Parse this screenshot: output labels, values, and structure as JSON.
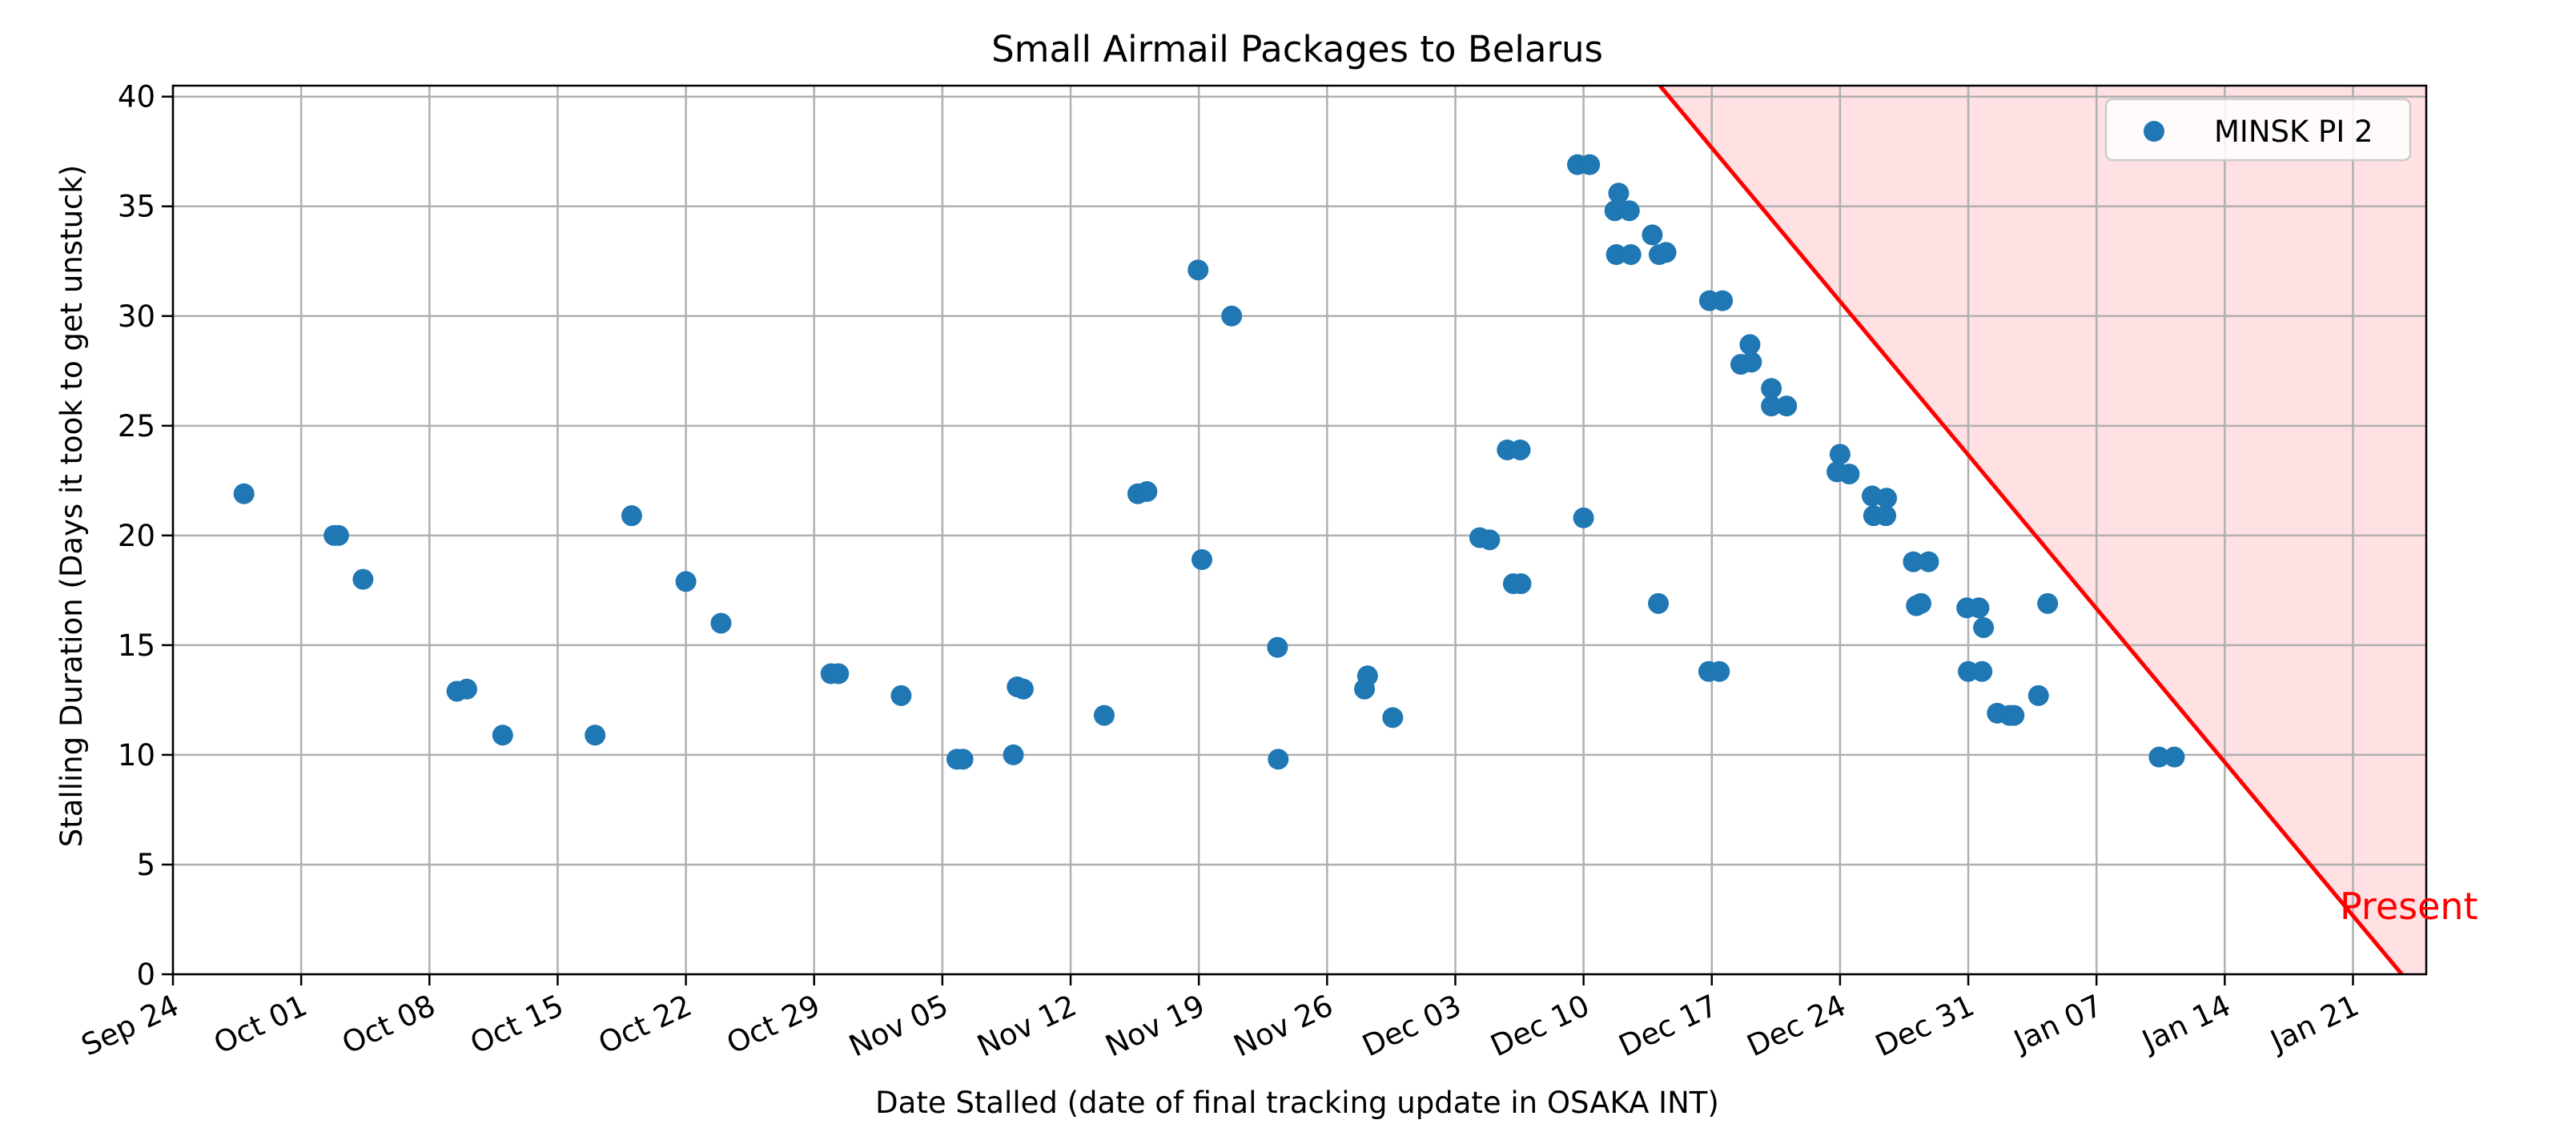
{
  "chart_data": {
    "type": "scatter",
    "title": "Small Airmail Packages to Belarus",
    "xlabel": "Date Stalled (date of final tracking update in OSAKA INT)",
    "ylabel": "Stalling Duration (Days it took to get unstuck)",
    "x_axis_type": "date",
    "xlim": [
      "2023-09-24",
      "2024-01-25"
    ],
    "ylim": [
      0,
      40.5
    ],
    "x_ticks": [
      "2023-09-24",
      "2023-10-01",
      "2023-10-08",
      "2023-10-15",
      "2023-10-22",
      "2023-10-29",
      "2023-11-05",
      "2023-11-12",
      "2023-11-19",
      "2023-11-26",
      "2023-12-03",
      "2023-12-10",
      "2023-12-17",
      "2023-12-24",
      "2023-12-31",
      "2024-01-07",
      "2024-01-14",
      "2024-01-21"
    ],
    "x_tick_labels": [
      "Sep 24",
      "Oct 01",
      "Oct 08",
      "Oct 15",
      "Oct 22",
      "Oct 29",
      "Nov 05",
      "Nov 12",
      "Nov 19",
      "Nov 26",
      "Dec 03",
      "Dec 10",
      "Dec 17",
      "Dec 24",
      "Dec 31",
      "Jan 07",
      "Jan 14",
      "Jan 21"
    ],
    "y_ticks": [
      0,
      5,
      10,
      15,
      20,
      25,
      30,
      35,
      40
    ],
    "y_tick_labels": [
      "0",
      "5",
      "10",
      "15",
      "20",
      "25",
      "30",
      "35",
      "40"
    ],
    "grid": true,
    "legend_position": "top-right",
    "series": [
      {
        "name": "MINSK PI 2",
        "color": "#1f77b4",
        "points": [
          {
            "x": "2023-09-27 21:00",
            "y": 21.9
          },
          {
            "x": "2023-10-02 19:00",
            "y": 20.0
          },
          {
            "x": "2023-10-03 01:00",
            "y": 20.0
          },
          {
            "x": "2023-10-04 09:00",
            "y": 18.0
          },
          {
            "x": "2023-10-09 12:00",
            "y": 12.9
          },
          {
            "x": "2023-10-10 01:00",
            "y": 13.0
          },
          {
            "x": "2023-10-12 00:00",
            "y": 10.9
          },
          {
            "x": "2023-10-17 01:00",
            "y": 10.9
          },
          {
            "x": "2023-10-19 01:00",
            "y": 20.9
          },
          {
            "x": "2023-10-22 00:00",
            "y": 17.9
          },
          {
            "x": "2023-10-23 22:00",
            "y": 16.0
          },
          {
            "x": "2023-10-29 22:00",
            "y": 13.7
          },
          {
            "x": "2023-10-30 08:00",
            "y": 13.7
          },
          {
            "x": "2023-11-02 18:00",
            "y": 12.7
          },
          {
            "x": "2023-11-05 19:00",
            "y": 9.8
          },
          {
            "x": "2023-11-06 03:00",
            "y": 9.8
          },
          {
            "x": "2023-11-08 21:00",
            "y": 10.0
          },
          {
            "x": "2023-11-09 02:00",
            "y": 13.1
          },
          {
            "x": "2023-11-09 10:00",
            "y": 13.0
          },
          {
            "x": "2023-11-13 20:00",
            "y": 11.8
          },
          {
            "x": "2023-11-15 16:00",
            "y": 21.9
          },
          {
            "x": "2023-11-16 04:00",
            "y": 22.0
          },
          {
            "x": "2023-11-18 23:00",
            "y": 32.1
          },
          {
            "x": "2023-11-19 04:00",
            "y": 18.9
          },
          {
            "x": "2023-11-20 19:00",
            "y": 30.0
          },
          {
            "x": "2023-11-23 07:00",
            "y": 14.9
          },
          {
            "x": "2023-11-23 08:00",
            "y": 9.8
          },
          {
            "x": "2023-11-28 01:00",
            "y": 13.0
          },
          {
            "x": "2023-11-28 05:00",
            "y": 13.6
          },
          {
            "x": "2023-11-29 14:00",
            "y": 11.7
          },
          {
            "x": "2023-12-04 08:00",
            "y": 19.9
          },
          {
            "x": "2023-12-04 21:00",
            "y": 19.8
          },
          {
            "x": "2023-12-05 20:00",
            "y": 23.9
          },
          {
            "x": "2023-12-06 04:00",
            "y": 17.8
          },
          {
            "x": "2023-12-06 13:00",
            "y": 23.9
          },
          {
            "x": "2023-12-06 14:00",
            "y": 17.8
          },
          {
            "x": "2023-12-09 16:00",
            "y": 36.9
          },
          {
            "x": "2023-12-10 00:00",
            "y": 20.8
          },
          {
            "x": "2023-12-10 08:00",
            "y": 36.9
          },
          {
            "x": "2023-12-11 17:00",
            "y": 34.8
          },
          {
            "x": "2023-12-11 19:00",
            "y": 32.8
          },
          {
            "x": "2023-12-11 22:00",
            "y": 35.6
          },
          {
            "x": "2023-12-12 12:00",
            "y": 34.8
          },
          {
            "x": "2023-12-12 14:00",
            "y": 32.8
          },
          {
            "x": "2023-12-13 18:00",
            "y": 33.7
          },
          {
            "x": "2023-12-14 02:00",
            "y": 16.9
          },
          {
            "x": "2023-12-14 03:00",
            "y": 32.8
          },
          {
            "x": "2023-12-14 12:00",
            "y": 32.9
          },
          {
            "x": "2023-12-16 20:00",
            "y": 13.8
          },
          {
            "x": "2023-12-16 21:00",
            "y": 30.7
          },
          {
            "x": "2023-12-17 10:00",
            "y": 13.8
          },
          {
            "x": "2023-12-17 14:00",
            "y": 30.7
          },
          {
            "x": "2023-12-18 14:00",
            "y": 27.8
          },
          {
            "x": "2023-12-19 02:00",
            "y": 28.7
          },
          {
            "x": "2023-12-19 04:00",
            "y": 27.9
          },
          {
            "x": "2023-12-20 06:00",
            "y": 26.7
          },
          {
            "x": "2023-12-20 06:00",
            "y": 25.9
          },
          {
            "x": "2023-12-21 02:00",
            "y": 25.9
          },
          {
            "x": "2023-12-23 20:00",
            "y": 22.9
          },
          {
            "x": "2023-12-24 00:00",
            "y": 23.7
          },
          {
            "x": "2023-12-24 12:00",
            "y": 22.8
          },
          {
            "x": "2023-12-25 18:00",
            "y": 21.8
          },
          {
            "x": "2023-12-25 20:00",
            "y": 20.9
          },
          {
            "x": "2023-12-26 12:00",
            "y": 20.9
          },
          {
            "x": "2023-12-26 13:00",
            "y": 21.7
          },
          {
            "x": "2023-12-28 00:00",
            "y": 18.8
          },
          {
            "x": "2023-12-28 04:00",
            "y": 16.8
          },
          {
            "x": "2023-12-28 10:00",
            "y": 16.9
          },
          {
            "x": "2023-12-28 20:00",
            "y": 18.8
          },
          {
            "x": "2023-12-30 22:00",
            "y": 16.7
          },
          {
            "x": "2023-12-31 00:00",
            "y": 13.8
          },
          {
            "x": "2023-12-31 14:00",
            "y": 16.7
          },
          {
            "x": "2023-12-31 18:00",
            "y": 13.8
          },
          {
            "x": "2023-12-31 20:00",
            "y": 15.8
          },
          {
            "x": "2024-01-01 14:00",
            "y": 11.9
          },
          {
            "x": "2024-01-02 06:00",
            "y": 11.8
          },
          {
            "x": "2024-01-02 12:00",
            "y": 11.8
          },
          {
            "x": "2024-01-03 20:00",
            "y": 12.7
          },
          {
            "x": "2024-01-04 08:00",
            "y": 16.9
          },
          {
            "x": "2024-01-10 10:00",
            "y": 9.9
          },
          {
            "x": "2024-01-11 06:00",
            "y": 9.9
          }
        ]
      }
    ],
    "present_line": {
      "label": "Present",
      "color": "#ff0000",
      "fill_color": "#ffe0e3",
      "points": [
        {
          "x": "2023-12-14 04:00",
          "y": 40.5
        },
        {
          "x": "2024-01-23 16:00",
          "y": 0
        }
      ]
    }
  }
}
